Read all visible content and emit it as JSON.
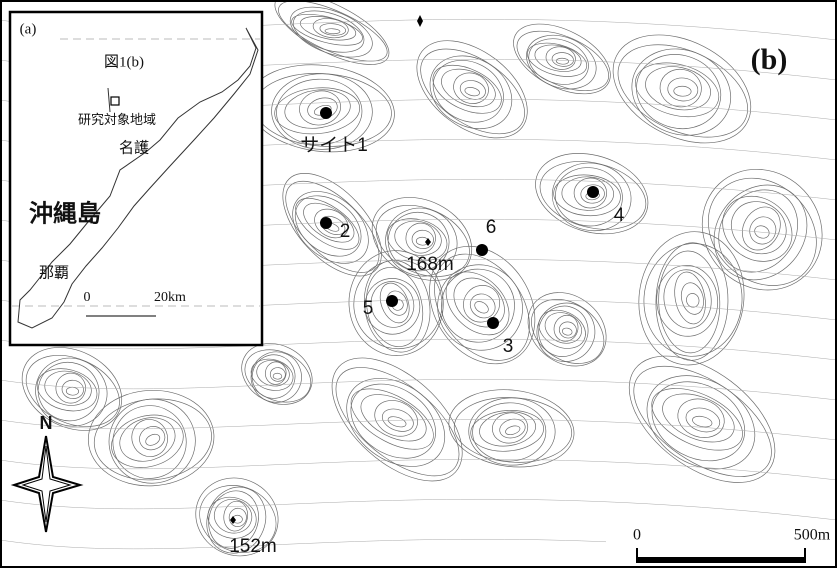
{
  "inset": {
    "label": "(a)",
    "figure_ref": "図1(b)",
    "study_area": "研究対象地域",
    "nago": "名護",
    "island": "沖縄島",
    "naha": "那覇",
    "scale": {
      "start": "0",
      "end": "20km"
    }
  },
  "map": {
    "label": "(b)",
    "sites": [
      {
        "label": "サイト1"
      },
      {
        "label": "2"
      },
      {
        "label": "3"
      },
      {
        "label": "4"
      },
      {
        "label": "5"
      },
      {
        "label": "6"
      }
    ],
    "peaks": [
      {
        "label": "168m"
      },
      {
        "label": "152m"
      }
    ],
    "north": "N",
    "scale": {
      "start": "0",
      "end": "500m"
    }
  }
}
